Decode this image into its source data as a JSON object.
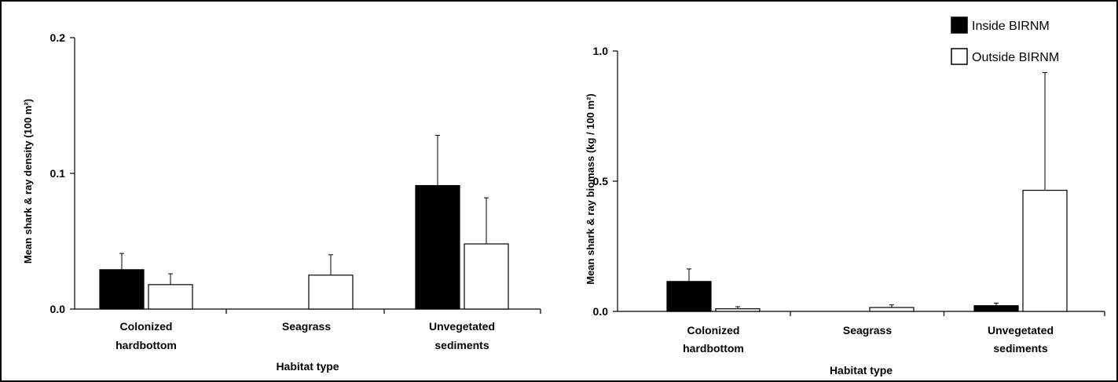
{
  "chart_data": [
    {
      "type": "bar",
      "categories": [
        "Colonized hardbottom",
        "Seagrass",
        "Unvegetated sediments"
      ],
      "category_lines": [
        [
          "Colonized",
          "hardbottom"
        ],
        [
          "Seagrass"
        ],
        [
          "Unvegetated",
          "sediments"
        ]
      ],
      "ylabel": "Mean shark & ray density (100 m²)",
      "xlabel": "Habitat type",
      "ylim": [
        0,
        0.2
      ],
      "yticks": [
        0.0,
        0.1,
        0.2
      ],
      "ytick_labels": [
        "0.0",
        "0.1",
        "0.2"
      ],
      "series": [
        {
          "name": "Inside BIRNM",
          "values": [
            0.029,
            0.0,
            0.091
          ],
          "errors": [
            0.012,
            0.0,
            0.037
          ],
          "color": "#000000"
        },
        {
          "name": "Outside BIRNM",
          "values": [
            0.018,
            0.025,
            0.048
          ],
          "errors": [
            0.008,
            0.015,
            0.034
          ],
          "color": "#ffffff"
        }
      ]
    },
    {
      "type": "bar",
      "categories": [
        "Colonized hardbottom",
        "Seagrass",
        "Unvegetated sediments"
      ],
      "category_lines": [
        [
          "Colonized",
          "hardbottom"
        ],
        [
          "Seagrass"
        ],
        [
          "Unvegetated",
          "sediments"
        ]
      ],
      "ylabel": "Mean shark & ray biomass (kg / 100 m²)",
      "xlabel": "Habitat type",
      "ylim": [
        0,
        1.0
      ],
      "yticks": [
        0.0,
        0.5,
        1.0
      ],
      "ytick_labels": [
        "0.0",
        "0.5",
        "1.0"
      ],
      "series": [
        {
          "name": "Inside BIRNM",
          "values": [
            0.115,
            0.0,
            0.022
          ],
          "errors": [
            0.048,
            0.0,
            0.01
          ],
          "color": "#000000"
        },
        {
          "name": "Outside BIRNM",
          "values": [
            0.01,
            0.015,
            0.465
          ],
          "errors": [
            0.008,
            0.01,
            0.452
          ],
          "color": "#ffffff"
        }
      ]
    }
  ],
  "legend": {
    "placement": "top-right",
    "items": [
      {
        "label": "Inside BIRNM",
        "color": "#000000"
      },
      {
        "label": "Outside BIRNM",
        "color": "#ffffff"
      }
    ]
  }
}
